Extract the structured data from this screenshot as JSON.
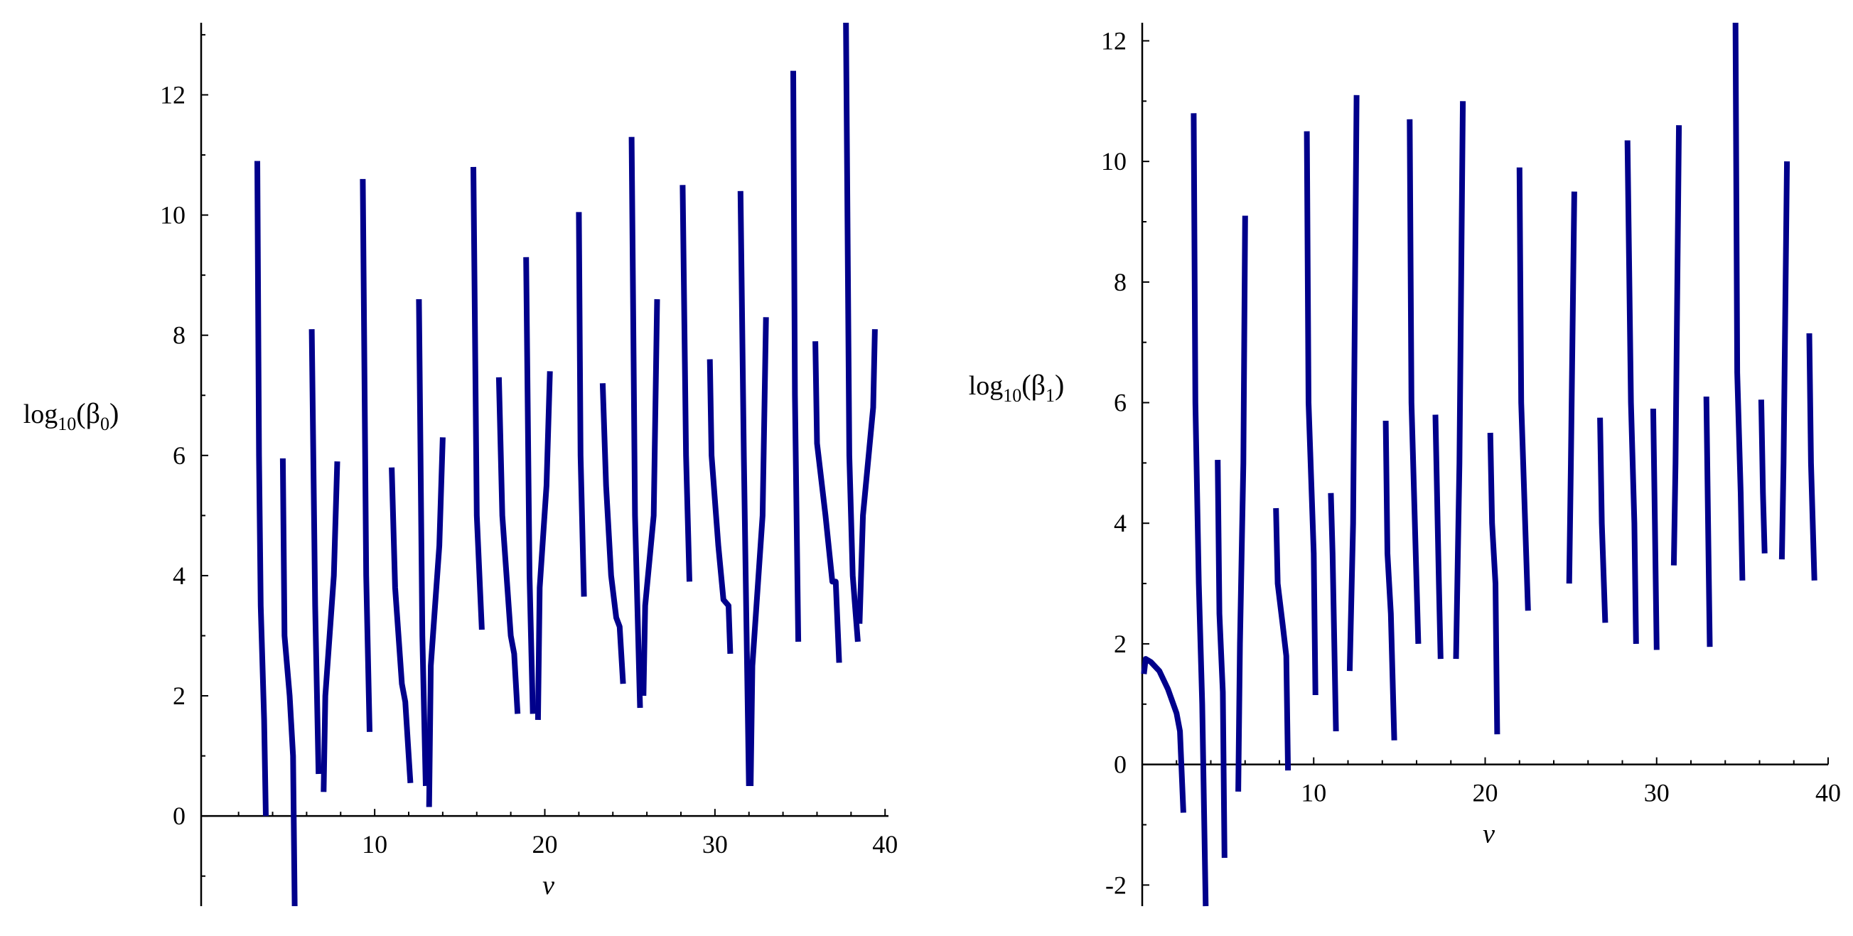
{
  "colors": {
    "line": "#00008b"
  },
  "chart_data": [
    {
      "type": "line",
      "xlabel": "v",
      "ylabel": {
        "pre": "log",
        "sub": "10",
        "open": "(β",
        "greeksub": "0",
        "close": ")"
      },
      "xlim": [
        -0.2,
        40.2
      ],
      "ylim": [
        -1.5,
        13.2
      ],
      "xticks": [
        10,
        20,
        30,
        40
      ],
      "yticks": [
        0,
        2,
        4,
        6,
        8,
        10,
        12
      ],
      "segments": [
        [
          [
            3.1,
            10.9
          ],
          [
            3.2,
            6
          ],
          [
            3.3,
            3.5
          ],
          [
            3.5,
            1.6
          ],
          [
            3.6,
            0
          ]
        ],
        [
          [
            4.6,
            5.95
          ],
          [
            4.7,
            3
          ],
          [
            5.0,
            2
          ],
          [
            5.2,
            1
          ],
          [
            5.3,
            -1.5
          ]
        ],
        [
          [
            6.3,
            8.1
          ],
          [
            6.5,
            3.5
          ],
          [
            6.7,
            0.7
          ]
        ],
        [
          [
            7.0,
            0.4
          ],
          [
            7.1,
            2
          ],
          [
            7.6,
            4
          ],
          [
            7.8,
            5.9
          ]
        ],
        [
          [
            9.3,
            10.6
          ],
          [
            9.5,
            4
          ],
          [
            9.7,
            1.4
          ]
        ],
        [
          [
            11.0,
            5.8
          ],
          [
            11.2,
            3.8
          ],
          [
            11.6,
            2.2
          ],
          [
            11.8,
            1.9
          ],
          [
            12.1,
            0.55
          ]
        ],
        [
          [
            12.6,
            8.6
          ],
          [
            12.8,
            3
          ],
          [
            13.0,
            0.5
          ]
        ],
        [
          [
            13.2,
            0.15
          ],
          [
            13.3,
            2.5
          ],
          [
            13.8,
            4.5
          ],
          [
            14.0,
            6.3
          ]
        ],
        [
          [
            15.8,
            10.8
          ],
          [
            16.0,
            5
          ],
          [
            16.3,
            3.1
          ]
        ],
        [
          [
            17.3,
            7.3
          ],
          [
            17.5,
            5
          ],
          [
            18.0,
            3
          ],
          [
            18.2,
            2.7
          ],
          [
            18.4,
            1.7
          ]
        ],
        [
          [
            18.9,
            9.3
          ],
          [
            19.1,
            4
          ],
          [
            19.3,
            1.7
          ]
        ],
        [
          [
            19.6,
            1.6
          ],
          [
            19.7,
            3.8
          ],
          [
            20.1,
            5.5
          ],
          [
            20.3,
            7.4
          ]
        ],
        [
          [
            22.0,
            10.05
          ],
          [
            22.1,
            6
          ],
          [
            22.3,
            3.65
          ]
        ],
        [
          [
            23.4,
            7.2
          ],
          [
            23.6,
            5.5
          ],
          [
            23.9,
            4
          ],
          [
            24.2,
            3.3
          ],
          [
            24.4,
            3.15
          ],
          [
            24.6,
            2.2
          ]
        ],
        [
          [
            25.1,
            11.3
          ],
          [
            25.3,
            5
          ],
          [
            25.6,
            1.8
          ]
        ],
        [
          [
            25.8,
            2
          ],
          [
            25.9,
            3.5
          ],
          [
            26.4,
            5
          ],
          [
            26.6,
            8.6
          ]
        ],
        [
          [
            28.1,
            10.5
          ],
          [
            28.3,
            6
          ],
          [
            28.5,
            3.9
          ]
        ],
        [
          [
            29.7,
            7.6
          ],
          [
            29.8,
            6
          ],
          [
            30.2,
            4.5
          ],
          [
            30.5,
            3.6
          ],
          [
            30.8,
            3.5
          ],
          [
            30.9,
            2.7
          ]
        ],
        [
          [
            31.5,
            10.4
          ],
          [
            31.7,
            6
          ],
          [
            32.0,
            0.5
          ]
        ],
        [
          [
            32.1,
            0.5
          ],
          [
            32.2,
            2.5
          ],
          [
            32.8,
            5
          ],
          [
            33.0,
            8.3
          ]
        ],
        [
          [
            34.6,
            12.4
          ],
          [
            34.7,
            7
          ],
          [
            34.9,
            2.9
          ]
        ],
        [
          [
            35.9,
            7.9
          ],
          [
            36.0,
            6.2
          ],
          [
            36.5,
            5
          ],
          [
            36.9,
            3.9
          ],
          [
            37.1,
            3.9
          ],
          [
            37.3,
            2.55
          ]
        ],
        [
          [
            37.7,
            13.2
          ],
          [
            37.9,
            6
          ],
          [
            38.1,
            4
          ],
          [
            38.4,
            2.9
          ]
        ],
        [
          [
            38.5,
            3.2
          ],
          [
            38.7,
            5
          ],
          [
            39.3,
            6.8
          ],
          [
            39.4,
            8.1
          ]
        ]
      ]
    },
    {
      "type": "line",
      "xlabel": "v",
      "ylabel": {
        "pre": "log",
        "sub": "10",
        "open": "(β",
        "greeksub": "1",
        "close": ")"
      },
      "xlim": [
        0,
        40
      ],
      "ylim": [
        -2.35,
        12.3
      ],
      "xticks": [
        10,
        20,
        30,
        40
      ],
      "yticks": [
        -2,
        0,
        2,
        4,
        6,
        8,
        10,
        12
      ],
      "segments": [
        [
          [
            0.1,
            1.5
          ],
          [
            0.2,
            1.75
          ],
          [
            0.5,
            1.7
          ],
          [
            1.0,
            1.55
          ],
          [
            1.5,
            1.25
          ],
          [
            2.0,
            0.85
          ],
          [
            2.2,
            0.55
          ],
          [
            2.4,
            -0.8
          ]
        ],
        [
          [
            3.0,
            10.8
          ],
          [
            3.1,
            6
          ],
          [
            3.3,
            3
          ],
          [
            3.5,
            1
          ],
          [
            3.7,
            -2.35
          ]
        ],
        [
          [
            4.4,
            5.05
          ],
          [
            4.5,
            2.5
          ],
          [
            4.7,
            1.2
          ],
          [
            4.8,
            -1.55
          ]
        ],
        [
          [
            5.6,
            -0.45
          ],
          [
            5.7,
            2
          ],
          [
            5.9,
            5
          ],
          [
            6.0,
            9.1
          ]
        ],
        [
          [
            7.8,
            4.25
          ],
          [
            7.9,
            3
          ],
          [
            8.2,
            2.3
          ],
          [
            8.4,
            1.8
          ],
          [
            8.5,
            -0.1
          ]
        ],
        [
          [
            9.6,
            10.5
          ],
          [
            9.7,
            6
          ],
          [
            10.0,
            3.5
          ],
          [
            10.1,
            1.15
          ]
        ],
        [
          [
            11.0,
            4.5
          ],
          [
            11.1,
            3.5
          ],
          [
            11.3,
            0.55
          ]
        ],
        [
          [
            12.1,
            1.55
          ],
          [
            12.3,
            4
          ],
          [
            12.5,
            11.1
          ]
        ],
        [
          [
            14.2,
            5.7
          ],
          [
            14.3,
            3.5
          ],
          [
            14.5,
            2.5
          ],
          [
            14.7,
            0.4
          ]
        ],
        [
          [
            15.6,
            10.7
          ],
          [
            15.7,
            6
          ],
          [
            16.1,
            2
          ]
        ],
        [
          [
            17.1,
            5.8
          ],
          [
            17.3,
            3
          ],
          [
            17.4,
            1.75
          ]
        ],
        [
          [
            18.3,
            1.75
          ],
          [
            18.5,
            5
          ],
          [
            18.7,
            11
          ]
        ],
        [
          [
            20.3,
            5.5
          ],
          [
            20.4,
            4
          ],
          [
            20.6,
            3
          ],
          [
            20.7,
            0.5
          ]
        ],
        [
          [
            22.0,
            9.9
          ],
          [
            22.1,
            6
          ],
          [
            22.5,
            2.55
          ]
        ],
        [
          [
            24.9,
            3
          ],
          [
            25.0,
            5
          ],
          [
            25.2,
            9.5
          ]
        ],
        [
          [
            26.7,
            5.75
          ],
          [
            26.8,
            4
          ],
          [
            27.0,
            2.35
          ]
        ],
        [
          [
            28.3,
            10.35
          ],
          [
            28.5,
            6
          ],
          [
            28.7,
            4
          ],
          [
            28.8,
            2
          ]
        ],
        [
          [
            29.8,
            5.9
          ],
          [
            29.9,
            4
          ],
          [
            30.0,
            1.9
          ]
        ],
        [
          [
            31.0,
            3.3
          ],
          [
            31.1,
            5
          ],
          [
            31.3,
            10.6
          ]
        ],
        [
          [
            32.9,
            6.1
          ],
          [
            33.0,
            4
          ],
          [
            33.1,
            1.95
          ]
        ],
        [
          [
            34.6,
            12.3
          ],
          [
            34.7,
            6.5
          ],
          [
            34.9,
            4.5
          ],
          [
            35.0,
            3.05
          ]
        ],
        [
          [
            36.1,
            6.05
          ],
          [
            36.2,
            4.5
          ],
          [
            36.3,
            3.5
          ]
        ],
        [
          [
            37.3,
            3.4
          ],
          [
            37.4,
            5
          ],
          [
            37.6,
            10
          ]
        ],
        [
          [
            38.9,
            7.15
          ],
          [
            39.0,
            5
          ],
          [
            39.2,
            3.05
          ]
        ]
      ]
    }
  ]
}
